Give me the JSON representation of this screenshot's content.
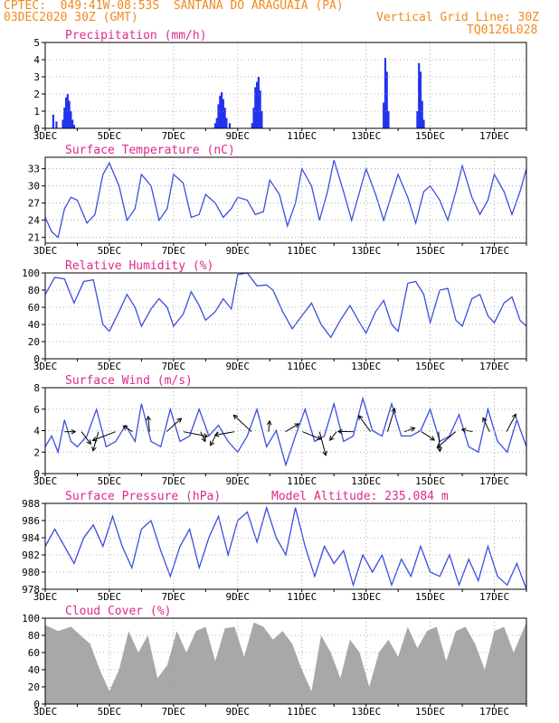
{
  "header": {
    "line1_left": "CPTEC:  049:41W-08:53S  SANTANA DO ARAGUAIA (PA)",
    "line2_left": "03DEC2020 30Z (GMT)",
    "line2_right": "Vertical Grid Line: 30Z",
    "line3_right": "TQ0126L028"
  },
  "colors": {
    "header": "#f08a1c",
    "title": "#e0288c",
    "line": "#3a4ee0",
    "bar": "#2233ee",
    "cloud": "#a8a8a8",
    "grid": "#9a9a9a"
  },
  "x_ticks": [
    "3DEC",
    "5DEC",
    "7DEC",
    "9DEC",
    "11DEC",
    "13DEC",
    "15DEC",
    "17DEC"
  ],
  "chart_data": [
    {
      "type": "bar",
      "title": "Precipitation (mm/h)",
      "x_day_start": 3,
      "x_day_end": 18,
      "ylim": [
        0,
        5
      ],
      "yticks": [
        0,
        1,
        2,
        3,
        4,
        5
      ],
      "x": [
        3.25,
        3.35,
        3.55,
        3.6,
        3.65,
        3.7,
        3.75,
        3.8,
        3.85,
        3.9,
        8.3,
        8.35,
        8.4,
        8.45,
        8.5,
        8.55,
        8.6,
        8.65,
        8.75,
        9.45,
        9.5,
        9.55,
        9.6,
        9.65,
        9.7,
        9.75,
        13.55,
        13.6,
        13.65,
        13.7,
        14.6,
        14.65,
        14.7,
        14.75,
        14.8
      ],
      "values": [
        0.8,
        0.4,
        0.5,
        1.2,
        1.8,
        2.0,
        1.6,
        1.0,
        0.5,
        0.2,
        0.3,
        0.6,
        1.4,
        1.9,
        2.1,
        1.7,
        1.2,
        0.6,
        0.3,
        0.3,
        1.2,
        2.4,
        2.7,
        3.0,
        2.2,
        1.0,
        1.5,
        4.1,
        3.3,
        1.0,
        1.0,
        3.8,
        3.3,
        1.6,
        0.5
      ]
    },
    {
      "type": "line",
      "title": "Surface Temperature (nC)",
      "x_day_start": 3,
      "x_day_end": 18,
      "ylim": [
        20,
        35
      ],
      "yticks": [
        21,
        24,
        27,
        30,
        33
      ],
      "x": [
        3,
        3.2,
        3.4,
        3.6,
        3.8,
        4.0,
        4.3,
        4.55,
        4.8,
        5.0,
        5.3,
        5.55,
        5.8,
        6.0,
        6.3,
        6.55,
        6.8,
        7.0,
        7.3,
        7.55,
        7.8,
        8.0,
        8.3,
        8.55,
        8.8,
        9.0,
        9.3,
        9.55,
        9.8,
        10.0,
        10.3,
        10.55,
        10.8,
        11.0,
        11.3,
        11.55,
        11.8,
        12.0,
        12.3,
        12.55,
        12.8,
        13.0,
        13.3,
        13.55,
        13.8,
        14.0,
        14.3,
        14.55,
        14.8,
        15.0,
        15.3,
        15.55,
        15.8,
        16.0,
        16.3,
        16.55,
        16.8,
        17.0,
        17.3,
        17.55,
        17.8,
        18.0
      ],
      "values": [
        24.5,
        22.0,
        21.0,
        26.0,
        28.0,
        27.5,
        23.5,
        25.0,
        32.0,
        34.0,
        30.0,
        24.0,
        26.0,
        32.0,
        30.0,
        24.0,
        26.0,
        32.0,
        30.5,
        24.5,
        25.0,
        28.5,
        27.0,
        24.5,
        26.0,
        28.0,
        27.5,
        25.0,
        25.5,
        31.0,
        28.5,
        23.0,
        27.0,
        33.0,
        30.0,
        24.0,
        29.0,
        34.5,
        29.0,
        24.0,
        29.0,
        33.0,
        28.5,
        24.0,
        28.5,
        32.0,
        28.0,
        23.5,
        29.0,
        30.0,
        27.5,
        24.0,
        29.0,
        33.5,
        28.0,
        25.0,
        27.5,
        32.0,
        29.0,
        25.0,
        29.0,
        33.0
      ]
    },
    {
      "type": "line",
      "title": "Relative Humidity (%)",
      "x_day_start": 3,
      "x_day_end": 18,
      "ylim": [
        0,
        100
      ],
      "yticks": [
        0,
        20,
        40,
        60,
        80,
        100
      ],
      "x": [
        3,
        3.3,
        3.6,
        3.9,
        4.2,
        4.5,
        4.8,
        5.0,
        5.3,
        5.55,
        5.8,
        6.0,
        6.3,
        6.55,
        6.8,
        7.0,
        7.3,
        7.55,
        7.8,
        8.0,
        8.3,
        8.55,
        8.8,
        9.0,
        9.3,
        9.6,
        9.9,
        10.1,
        10.4,
        10.7,
        11.0,
        11.3,
        11.6,
        11.9,
        12.2,
        12.5,
        12.8,
        13.0,
        13.3,
        13.55,
        13.8,
        14.0,
        14.3,
        14.55,
        14.8,
        15.0,
        15.3,
        15.55,
        15.8,
        16.0,
        16.3,
        16.55,
        16.8,
        17.0,
        17.3,
        17.55,
        17.8,
        18.0
      ],
      "values": [
        75,
        95,
        93,
        65,
        90,
        92,
        40,
        32,
        55,
        75,
        60,
        38,
        58,
        70,
        60,
        38,
        52,
        78,
        62,
        45,
        55,
        70,
        58,
        98,
        100,
        85,
        86,
        80,
        55,
        35,
        50,
        65,
        40,
        25,
        45,
        62,
        42,
        30,
        55,
        68,
        40,
        32,
        88,
        90,
        75,
        42,
        80,
        82,
        45,
        38,
        70,
        75,
        50,
        42,
        65,
        72,
        45,
        38
      ]
    },
    {
      "type": "line",
      "title": "Surface Wind (m/s)",
      "x_day_start": 3,
      "x_day_end": 18,
      "ylim": [
        0,
        8
      ],
      "yticks": [
        0,
        2,
        4,
        6,
        8
      ],
      "x": [
        3,
        3.2,
        3.4,
        3.6,
        3.8,
        4.0,
        4.3,
        4.6,
        4.9,
        5.2,
        5.5,
        5.8,
        6.0,
        6.3,
        6.6,
        6.9,
        7.2,
        7.5,
        7.8,
        8.1,
        8.4,
        8.7,
        9.0,
        9.3,
        9.6,
        9.9,
        10.2,
        10.5,
        10.8,
        11.1,
        11.4,
        11.7,
        12.0,
        12.3,
        12.6,
        12.9,
        13.2,
        13.5,
        13.8,
        14.1,
        14.4,
        14.7,
        15.0,
        15.3,
        15.6,
        15.9,
        16.2,
        16.5,
        16.8,
        17.1,
        17.4,
        17.7,
        18.0
      ],
      "values": [
        2.5,
        3.5,
        2.0,
        5.0,
        3.0,
        2.5,
        3.5,
        6.0,
        2.5,
        3.0,
        4.5,
        3.0,
        6.5,
        3.0,
        2.5,
        6.0,
        3.0,
        3.5,
        6.0,
        3.5,
        4.5,
        3.0,
        2.0,
        3.5,
        6.0,
        2.5,
        4.0,
        0.8,
        3.5,
        6.0,
        3.0,
        3.5,
        6.5,
        3.0,
        3.5,
        7.0,
        4.0,
        3.5,
        6.5,
        3.5,
        3.5,
        4.0,
        6.0,
        3.0,
        3.5,
        5.5,
        2.5,
        2.0,
        6.0,
        3.0,
        2.0,
        5.0,
        2.5
      ]
    },
    {
      "type": "line",
      "title": "Surface Pressure (hPa)",
      "annotation": "Model Altitude: 235.084 m",
      "x_day_start": 3,
      "x_day_end": 18,
      "ylim": [
        978,
        988
      ],
      "yticks": [
        978,
        980,
        982,
        984,
        986,
        988
      ],
      "x": [
        3,
        3.3,
        3.6,
        3.9,
        4.2,
        4.5,
        4.8,
        5.1,
        5.4,
        5.7,
        6.0,
        6.3,
        6.6,
        6.9,
        7.2,
        7.5,
        7.8,
        8.1,
        8.4,
        8.7,
        9.0,
        9.3,
        9.6,
        9.9,
        10.2,
        10.5,
        10.8,
        11.1,
        11.4,
        11.7,
        12.0,
        12.3,
        12.6,
        12.9,
        13.2,
        13.5,
        13.8,
        14.1,
        14.4,
        14.7,
        15.0,
        15.3,
        15.6,
        15.9,
        16.2,
        16.5,
        16.8,
        17.1,
        17.4,
        17.7,
        18.0
      ],
      "values": [
        983,
        985,
        983,
        981,
        984,
        985.5,
        983,
        986.5,
        983,
        980.5,
        985,
        986,
        982.5,
        979.5,
        983,
        985,
        980.5,
        984,
        986.5,
        982,
        986,
        987,
        983.5,
        987.5,
        984,
        982,
        987.5,
        983,
        979.5,
        983,
        981,
        982.5,
        978.5,
        982,
        980,
        982,
        978.5,
        981.5,
        979.5,
        983,
        980,
        979.5,
        982,
        978.5,
        981.5,
        979,
        983,
        979.5,
        978.5,
        981,
        978
      ]
    },
    {
      "type": "area",
      "title": "Cloud Cover (%)",
      "x_day_start": 3,
      "x_day_end": 18,
      "ylim": [
        0,
        100
      ],
      "yticks": [
        0,
        20,
        40,
        60,
        80,
        100
      ],
      "x": [
        3,
        3.4,
        3.8,
        4.1,
        4.4,
        4.7,
        5.0,
        5.3,
        5.6,
        5.9,
        6.2,
        6.5,
        6.8,
        7.1,
        7.4,
        7.7,
        8.0,
        8.3,
        8.6,
        8.9,
        9.2,
        9.5,
        9.8,
        10.1,
        10.4,
        10.7,
        11.0,
        11.3,
        11.6,
        11.9,
        12.2,
        12.5,
        12.8,
        13.1,
        13.4,
        13.7,
        14.0,
        14.3,
        14.6,
        14.9,
        15.2,
        15.5,
        15.8,
        16.1,
        16.4,
        16.7,
        17.0,
        17.3,
        17.6,
        18.0
      ],
      "values": [
        92,
        85,
        90,
        80,
        70,
        40,
        15,
        40,
        85,
        60,
        80,
        30,
        45,
        85,
        60,
        85,
        90,
        50,
        88,
        90,
        55,
        95,
        90,
        75,
        85,
        70,
        40,
        15,
        80,
        60,
        30,
        75,
        60,
        20,
        60,
        75,
        55,
        90,
        65,
        85,
        90,
        50,
        85,
        90,
        70,
        40,
        85,
        90,
        60,
        95
      ]
    }
  ]
}
